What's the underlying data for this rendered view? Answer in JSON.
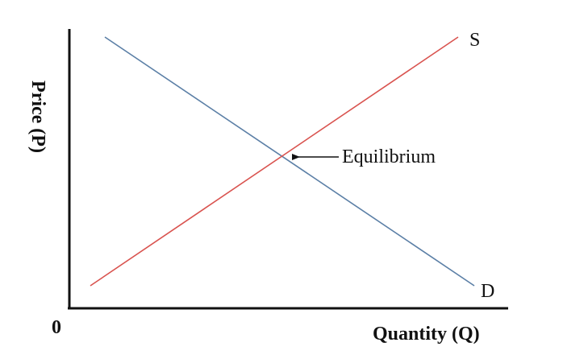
{
  "diagram": {
    "origin_label": "0",
    "x_axis_label": "Quantity (Q)",
    "y_axis_label": "Price (P)",
    "supply": {
      "label": "S",
      "color": "#d9534f"
    },
    "demand": {
      "label": "D",
      "color": "#5b7fa6"
    },
    "equilibrium": {
      "label": "Equilibrium",
      "arrow_color": "#111111"
    },
    "axis_color": "#111111"
  }
}
